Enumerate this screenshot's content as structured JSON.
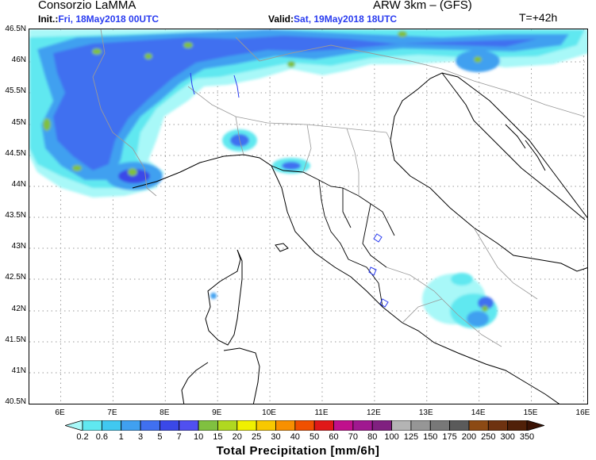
{
  "header": {
    "org": "Consorzio LaMMA",
    "model": "ARW 3km – (GFS)",
    "init_label": "Init.:",
    "init_value": "Fri, 18May2018 00UTC",
    "valid_label": "Valid:",
    "valid_value": "Sat, 19May2018 18UTC",
    "lead_time": "T=+42h"
  },
  "map": {
    "lat_labels": [
      "46.5N",
      "46N",
      "45.5N",
      "45N",
      "44.5N",
      "44N",
      "43.5N",
      "43N",
      "42.5N",
      "42N",
      "41.5N",
      "41N",
      "40.5N"
    ],
    "lon_labels": [
      "6E",
      "7E",
      "8E",
      "9E",
      "10E",
      "11E",
      "12E",
      "13E",
      "14E",
      "15E",
      "16E"
    ],
    "lat_range": [
      40.5,
      46.5
    ],
    "lon_range": [
      5.4,
      16.1
    ],
    "grid": true,
    "colors": {
      "coast": "#000000",
      "borders": "#999999",
      "regions": "#000000",
      "lakes": "#2a3cf0",
      "grid": "#9a9a9a"
    },
    "precip_color_scale_ref": "colorbar"
  },
  "colorbar": {
    "title": "Total Precipitation [mm/6h]",
    "levels": [
      "0.2",
      "0.6",
      "1",
      "3",
      "5",
      "7",
      "10",
      "15",
      "20",
      "25",
      "30",
      "40",
      "50",
      "60",
      "70",
      "80",
      "100",
      "125",
      "150",
      "175",
      "200",
      "250",
      "300",
      "350"
    ],
    "colors": [
      "#a8f8f8",
      "#60e8f0",
      "#40c8f0",
      "#40a0f0",
      "#4070f0",
      "#3a48e8",
      "#5050f0",
      "#80c040",
      "#b0d820",
      "#f0f000",
      "#f8c800",
      "#f89000",
      "#f05000",
      "#e01818",
      "#c0108c",
      "#a01890",
      "#802080",
      "#b4b4b4",
      "#969696",
      "#787878",
      "#5a5a5a",
      "#8c4a14",
      "#6e3210",
      "#502008",
      "#3a1204"
    ]
  }
}
